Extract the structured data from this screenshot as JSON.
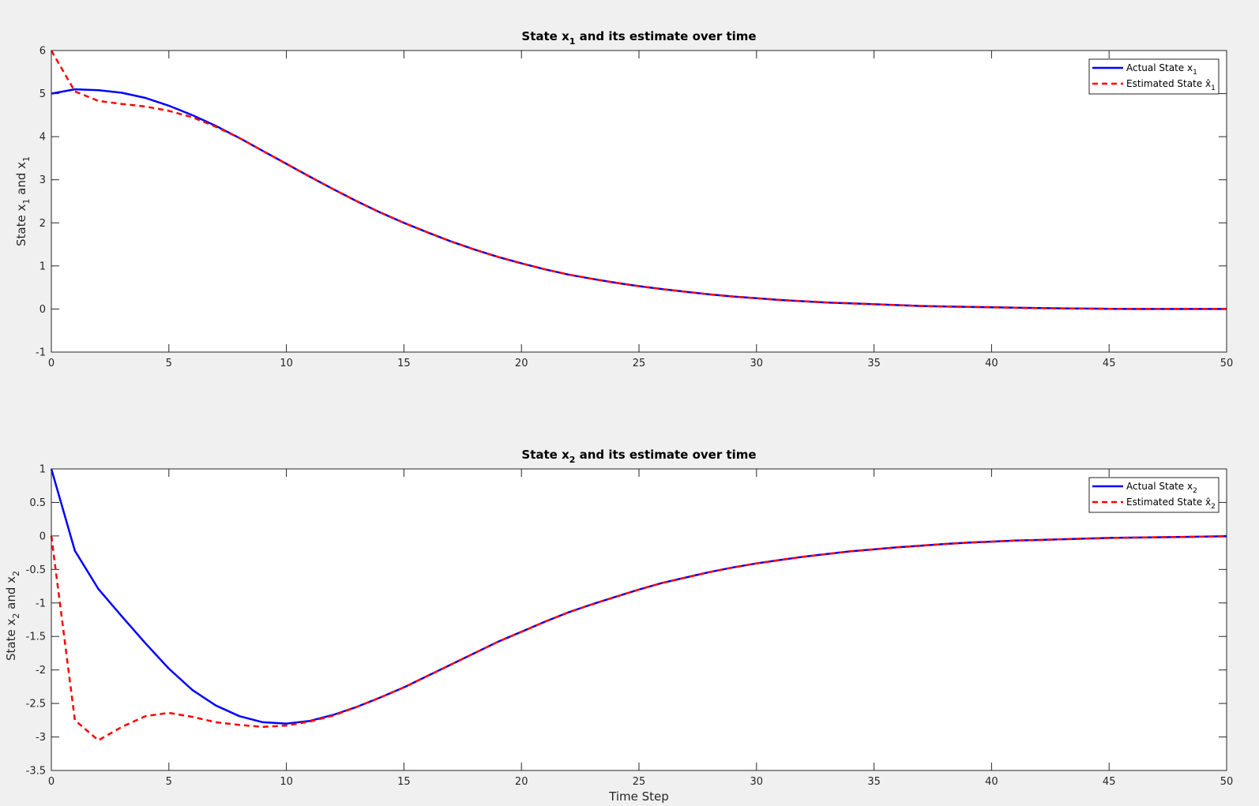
{
  "chart_data": [
    {
      "type": "line",
      "title": "State x1 and its estimate over time",
      "title_parts": {
        "prefix": "State x",
        "sub": "1",
        "suffix": " and its estimate over time"
      },
      "xlabel": "",
      "ylabel": "State x1 and x1",
      "ylabel_parts": {
        "a": "State x",
        "a_sub": "1",
        "b": " and x",
        "b_sub": "1"
      },
      "xlim": [
        0,
        50
      ],
      "ylim": [
        -1,
        6
      ],
      "xticks": [
        0,
        5,
        10,
        15,
        20,
        25,
        30,
        35,
        40,
        45,
        50
      ],
      "yticks": [
        -1,
        0,
        1,
        2,
        3,
        4,
        5,
        6
      ],
      "ytick_labels": [
        "-1",
        "0",
        "1",
        "2",
        "3",
        "4",
        "5",
        "6"
      ],
      "grid": false,
      "legend_position": "top-right",
      "x": [
        0,
        1,
        2,
        3,
        4,
        5,
        6,
        7,
        8,
        9,
        10,
        11,
        12,
        13,
        14,
        15,
        16,
        17,
        18,
        19,
        20,
        21,
        22,
        23,
        24,
        25,
        26,
        27,
        28,
        29,
        30,
        31,
        32,
        33,
        34,
        35,
        36,
        37,
        38,
        39,
        40,
        41,
        42,
        43,
        44,
        45,
        46,
        47,
        48,
        49,
        50
      ],
      "series": [
        {
          "name": "Actual State x1",
          "legend_parts": {
            "text": "Actual State x",
            "sub": "1"
          },
          "color": "#0000ff",
          "style": "solid",
          "values": [
            5.0,
            5.1,
            5.08,
            5.02,
            4.9,
            4.72,
            4.5,
            4.25,
            3.97,
            3.67,
            3.37,
            3.07,
            2.78,
            2.5,
            2.24,
            2.0,
            1.78,
            1.57,
            1.38,
            1.21,
            1.06,
            0.92,
            0.8,
            0.7,
            0.61,
            0.53,
            0.46,
            0.4,
            0.34,
            0.29,
            0.25,
            0.21,
            0.18,
            0.15,
            0.13,
            0.11,
            0.09,
            0.07,
            0.06,
            0.05,
            0.04,
            0.03,
            0.02,
            0.015,
            0.01,
            0.005,
            0.0,
            0.0,
            0.0,
            0.0,
            0.0
          ]
        },
        {
          "name": "Estimated State x̂1",
          "legend_parts": {
            "text": "Estimated State x̂",
            "sub": "1"
          },
          "color": "#ff0000",
          "style": "dashed",
          "values": [
            6.0,
            5.05,
            4.83,
            4.76,
            4.7,
            4.6,
            4.45,
            4.23,
            3.97,
            3.67,
            3.37,
            3.07,
            2.78,
            2.5,
            2.24,
            2.0,
            1.78,
            1.57,
            1.38,
            1.21,
            1.06,
            0.92,
            0.8,
            0.7,
            0.61,
            0.53,
            0.46,
            0.4,
            0.34,
            0.29,
            0.25,
            0.21,
            0.18,
            0.15,
            0.13,
            0.11,
            0.09,
            0.07,
            0.06,
            0.05,
            0.04,
            0.03,
            0.02,
            0.015,
            0.01,
            0.005,
            0.0,
            0.0,
            0.0,
            0.0,
            0.0
          ]
        }
      ]
    },
    {
      "type": "line",
      "title": "State x2 and its estimate over time",
      "title_parts": {
        "prefix": "State x",
        "sub": "2",
        "suffix": " and its estimate over time"
      },
      "xlabel": "Time Step",
      "ylabel": "State x2 and x2",
      "ylabel_parts": {
        "a": "State x",
        "a_sub": "2",
        "b": " and x",
        "b_sub": "2"
      },
      "xlim": [
        0,
        50
      ],
      "ylim": [
        -3.5,
        1
      ],
      "xticks": [
        0,
        5,
        10,
        15,
        20,
        25,
        30,
        35,
        40,
        45,
        50
      ],
      "yticks": [
        -3.5,
        -3,
        -2.5,
        -2,
        -1.5,
        -1,
        -0.5,
        0,
        0.5,
        1
      ],
      "ytick_labels": [
        "-3.5",
        "-3",
        "-2.5",
        "-2",
        "-1.5",
        "-1",
        "-0.5",
        "0",
        "0.5",
        "1"
      ],
      "grid": false,
      "legend_position": "top-right",
      "x": [
        0,
        1,
        2,
        3,
        4,
        5,
        6,
        7,
        8,
        9,
        10,
        11,
        12,
        13,
        14,
        15,
        16,
        17,
        18,
        19,
        20,
        21,
        22,
        23,
        24,
        25,
        26,
        27,
        28,
        29,
        30,
        31,
        32,
        33,
        34,
        35,
        36,
        37,
        38,
        39,
        40,
        41,
        42,
        43,
        44,
        45,
        46,
        47,
        48,
        49,
        50
      ],
      "series": [
        {
          "name": "Actual State x2",
          "legend_parts": {
            "text": "Actual State x",
            "sub": "2"
          },
          "color": "#0000ff",
          "style": "solid",
          "values": [
            1.0,
            -0.22,
            -0.79,
            -1.2,
            -1.6,
            -1.98,
            -2.3,
            -2.53,
            -2.69,
            -2.78,
            -2.8,
            -2.76,
            -2.67,
            -2.55,
            -2.41,
            -2.26,
            -2.09,
            -1.92,
            -1.75,
            -1.58,
            -1.43,
            -1.28,
            -1.14,
            -1.02,
            -0.91,
            -0.8,
            -0.7,
            -0.62,
            -0.54,
            -0.47,
            -0.41,
            -0.36,
            -0.31,
            -0.27,
            -0.23,
            -0.2,
            -0.17,
            -0.145,
            -0.12,
            -0.1,
            -0.085,
            -0.07,
            -0.06,
            -0.05,
            -0.04,
            -0.03,
            -0.025,
            -0.02,
            -0.015,
            -0.01,
            -0.005
          ]
        },
        {
          "name": "Estimated State x̂2",
          "legend_parts": {
            "text": "Estimated State x̂",
            "sub": "2"
          },
          "color": "#ff0000",
          "style": "dashed",
          "values": [
            0.0,
            -2.75,
            -3.05,
            -2.85,
            -2.69,
            -2.64,
            -2.7,
            -2.78,
            -2.82,
            -2.85,
            -2.83,
            -2.77,
            -2.68,
            -2.55,
            -2.41,
            -2.26,
            -2.09,
            -1.92,
            -1.75,
            -1.58,
            -1.43,
            -1.28,
            -1.14,
            -1.02,
            -0.91,
            -0.8,
            -0.7,
            -0.62,
            -0.54,
            -0.47,
            -0.41,
            -0.36,
            -0.31,
            -0.27,
            -0.23,
            -0.2,
            -0.17,
            -0.145,
            -0.12,
            -0.1,
            -0.085,
            -0.07,
            -0.06,
            -0.05,
            -0.04,
            -0.03,
            -0.025,
            -0.02,
            -0.015,
            -0.01,
            -0.005
          ]
        }
      ]
    }
  ]
}
